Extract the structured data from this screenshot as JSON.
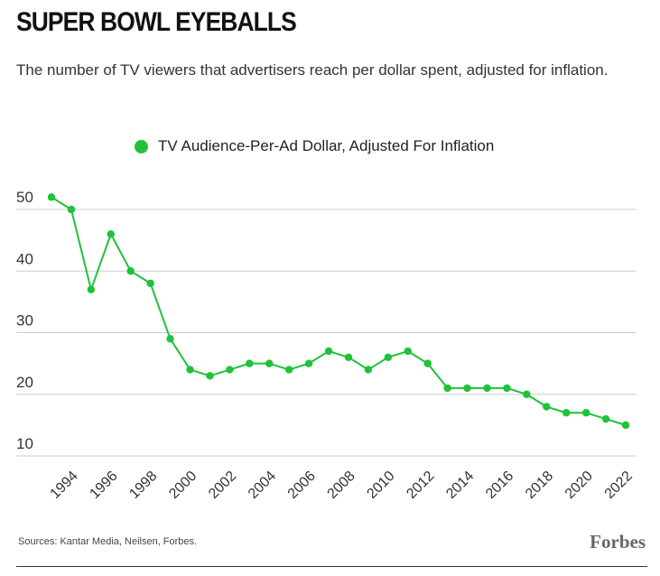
{
  "title": "SUPER BOWL EYEBALLS",
  "subtitle": "The number of TV viewers that advertisers reach per dollar spent, adjusted for inflation.",
  "source": "Sources: Kantar Media, Neilsen, Forbes.",
  "logo": "Forbes",
  "colors": {
    "series": "#1fc23a",
    "grid": "#cccccc"
  },
  "chart_data": {
    "type": "line",
    "title": "SUPER BOWL EYEBALLS",
    "xlabel": "",
    "ylabel": "",
    "ylim": [
      10,
      52
    ],
    "grid": true,
    "legend": "top-center",
    "yticks": [
      50,
      40,
      30,
      20,
      10
    ],
    "xticks": [
      1994,
      1996,
      1998,
      2000,
      2002,
      2004,
      2006,
      2008,
      2010,
      2012,
      2014,
      2016,
      2018,
      2020,
      2022
    ],
    "x": [
      1993,
      1994,
      1995,
      1996,
      1997,
      1998,
      1999,
      2000,
      2001,
      2002,
      2003,
      2004,
      2005,
      2006,
      2007,
      2008,
      2009,
      2010,
      2011,
      2012,
      2013,
      2014,
      2015,
      2016,
      2017,
      2018,
      2019,
      2020,
      2021,
      2022
    ],
    "series": [
      {
        "name": "TV Audience-Per-Ad Dollar, Adjusted For Inflation",
        "values": [
          52,
          50,
          37,
          46,
          40,
          38,
          29,
          24,
          23,
          24,
          25,
          25,
          24,
          25,
          27,
          26,
          24,
          26,
          27,
          25,
          21,
          21,
          21,
          21,
          20,
          18,
          17,
          17,
          16,
          15
        ]
      }
    ]
  }
}
